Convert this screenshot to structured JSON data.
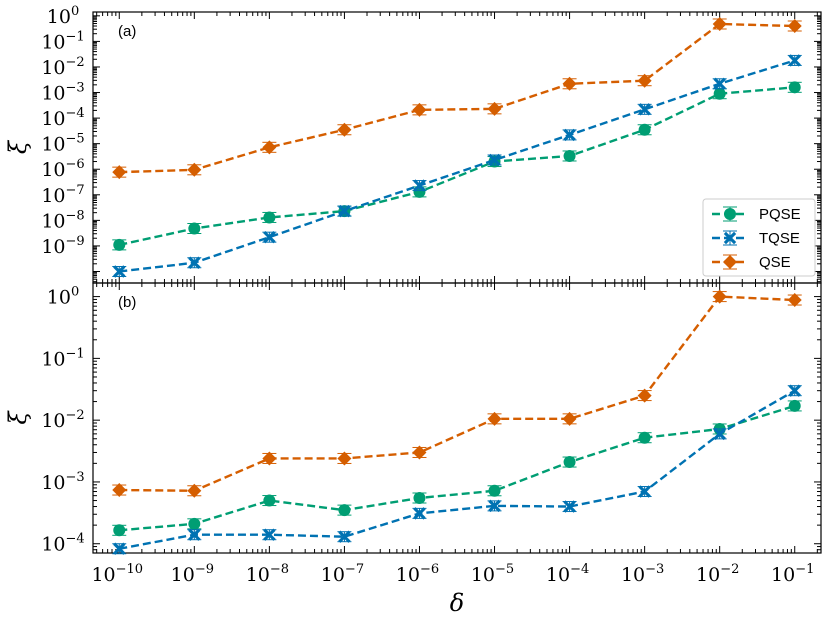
{
  "chart_data": [
    {
      "type": "line",
      "panel_label": "(a)",
      "xlabel": "δ",
      "ylabel": "ξ",
      "xscale": "log",
      "yscale": "log",
      "x_exponents": [
        -10,
        -9,
        -8,
        -7,
        -6,
        -5,
        -4,
        -3,
        -2,
        -1
      ],
      "x_tick_base": "10",
      "xlim_exp": [
        -10.35,
        -0.65
      ],
      "ylim_exp": [
        -10.45,
        0.15
      ],
      "y_tick_exponents": [
        0,
        -1,
        -2,
        -3,
        -4,
        -5,
        -6,
        -7,
        -8,
        -9
      ],
      "y_tick_base": "10",
      "legend": "bottom-right",
      "series": [
        {
          "name": "PQSE",
          "color": "#009e73",
          "marker": "circle",
          "values": [
            1.1e-09,
            4.8e-09,
            1.3e-08,
            2.3e-08,
            1.3e-07,
            2e-06,
            3.3e-06,
            3.5e-05,
            0.0009,
            0.0016
          ]
        },
        {
          "name": "TQSE",
          "color": "#0072b2",
          "marker": "x-filled",
          "values": [
            1e-10,
            2.2e-10,
            2.2e-09,
            2.3e-08,
            2.3e-07,
            2.3e-06,
            2.2e-05,
            0.00022,
            0.0022,
            0.018
          ]
        },
        {
          "name": "QSE",
          "color": "#d55e00",
          "marker": "diamond",
          "values": [
            7.7e-07,
            9.5e-07,
            7.2e-06,
            3.5e-05,
            0.00021,
            0.00023,
            0.0022,
            0.0029,
            0.48,
            0.4
          ]
        }
      ]
    },
    {
      "type": "line",
      "panel_label": "(b)",
      "xlabel": "δ",
      "ylabel": "ξ",
      "xscale": "log",
      "yscale": "log",
      "x_exponents": [
        -10,
        -9,
        -8,
        -7,
        -6,
        -5,
        -4,
        -3,
        -2,
        -1
      ],
      "x_tick_base": "10",
      "xlim_exp": [
        -10.35,
        -0.65
      ],
      "ylim_exp": [
        -4.15,
        0.22
      ],
      "y_tick_exponents": [
        0,
        -1,
        -2,
        -3,
        -4
      ],
      "y_tick_base": "10",
      "series": [
        {
          "name": "PQSE",
          "color": "#009e73",
          "marker": "circle",
          "values": [
            0.000165,
            0.00021,
            0.0005,
            0.00035,
            0.00055,
            0.00072,
            0.0021,
            0.0052,
            0.0072,
            0.017
          ]
        },
        {
          "name": "TQSE",
          "color": "#0072b2",
          "marker": "x-filled",
          "values": [
            8.3e-05,
            0.00014,
            0.00014,
            0.00013,
            0.00031,
            0.00041,
            0.0004,
            0.0007,
            0.006,
            0.03
          ]
        },
        {
          "name": "QSE",
          "color": "#d55e00",
          "marker": "diamond",
          "values": [
            0.00074,
            0.00072,
            0.0024,
            0.0024,
            0.003,
            0.0105,
            0.0105,
            0.025,
            1.0,
            0.88
          ]
        }
      ]
    }
  ]
}
